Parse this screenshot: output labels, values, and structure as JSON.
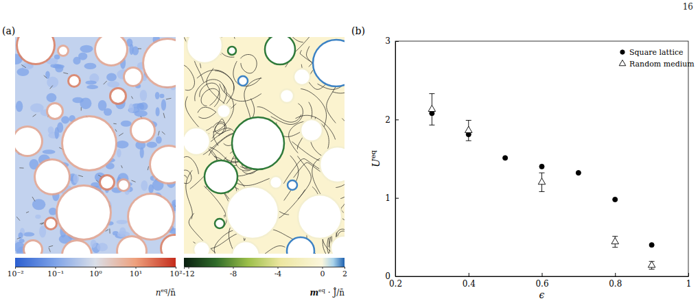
{
  "page_number": "16",
  "panel_a": {
    "panel_label": "(a)",
    "colorbars": [
      {
        "label": [
          "n",
          "eq",
          "/n̄"
        ],
        "log": true,
        "range": [
          0.01,
          100
        ],
        "ticks": [
          {
            "value": 0.01,
            "label": "10⁻²"
          },
          {
            "value": 0.1,
            "label": "10⁻¹"
          },
          {
            "value": 1,
            "label": "10⁰"
          },
          {
            "value": 10,
            "label": "10¹"
          },
          {
            "value": 100,
            "label": "10²"
          }
        ]
      },
      {
        "label": [
          "m",
          "eq",
          " · Ĵ/n̄"
        ],
        "range": [
          -12.4,
          2
        ],
        "ticks": [
          -12,
          -8,
          -4,
          0,
          2
        ]
      }
    ]
  },
  "chart_data": {
    "type": "scatter",
    "panel_label": "(b)",
    "x_label": "ϵ",
    "y_label": [
      "U",
      "eq"
    ],
    "xlim": [
      0.2,
      1
    ],
    "xticks": [
      0.2,
      0.4,
      0.6,
      0.8,
      1
    ],
    "ylim": [
      0,
      3
    ],
    "yticks": [
      0,
      1,
      2,
      3
    ],
    "legend": "upper right",
    "series": [
      {
        "name": "Square lattice",
        "marker": "circle",
        "color": "#000000",
        "x": [
          0.3,
          0.4,
          0.5,
          0.6,
          0.7,
          0.8,
          0.9
        ],
        "values": [
          2.08,
          1.81,
          1.51,
          1.4,
          1.32,
          0.98,
          0.4
        ]
      },
      {
        "name": "Random medium",
        "marker": "open-triangle",
        "color": "#000000",
        "x": [
          0.3,
          0.4,
          0.6,
          0.8,
          0.9
        ],
        "values": [
          2.13,
          1.86,
          1.2,
          0.44,
          0.14
        ],
        "errors": [
          0.2,
          0.13,
          0.12,
          0.07,
          0.05
        ]
      }
    ]
  }
}
